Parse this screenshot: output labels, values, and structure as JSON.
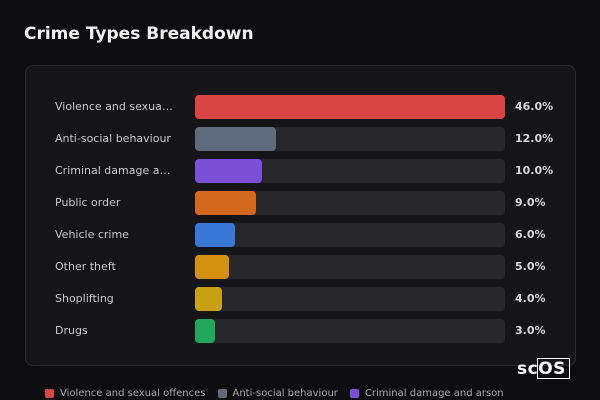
{
  "chart_data": {
    "type": "bar",
    "title": "Crime Types Breakdown",
    "categories": [
      "Violence and sexual offences",
      "Anti-social behaviour",
      "Criminal damage and arson",
      "Public order",
      "Vehicle crime",
      "Other theft",
      "Shoplifting",
      "Drugs"
    ],
    "values": [
      46,
      12,
      10,
      9,
      6,
      5,
      4,
      3
    ],
    "value_labels": [
      "46.0%",
      "12.0%",
      "10.0%",
      "9.0%",
      "6.0%",
      "5.0%",
      "4.0%",
      "3.0%"
    ],
    "colors": [
      "#d94545",
      "#5f6b7a",
      "#7b4fd6",
      "#d2691e",
      "#3a78d8",
      "#d4900f",
      "#c9a012",
      "#22a85a"
    ],
    "xlim": [
      0,
      46
    ],
    "watermark": "scOS"
  }
}
